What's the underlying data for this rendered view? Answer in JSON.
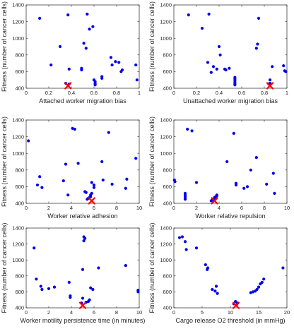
{
  "colors": {
    "points": "#0000ee",
    "best_marker": "#ff0000",
    "axes": "#262626"
  },
  "chart_data": [
    {
      "type": "scatter",
      "xlabel": "Attached worker migration bias",
      "ylabel": "Fitness (number of cancer cells)",
      "xlim": [
        0,
        1
      ],
      "ylim": [
        400,
        1400
      ],
      "xticks": [
        0,
        0.2,
        0.4,
        0.6,
        0.8,
        1
      ],
      "xtick_labels": [
        "0",
        "0.2",
        "0.4",
        "0.6",
        "0.8",
        "1"
      ],
      "yticks": [
        400,
        600,
        800,
        1000,
        1200,
        1400
      ],
      "ytick_labels": [
        "400",
        "600",
        "800",
        "1000",
        "1200",
        "1400"
      ],
      "x": [
        0.12,
        0.22,
        0.3,
        0.35,
        0.37,
        0.38,
        0.38,
        0.49,
        0.49,
        0.51,
        0.53,
        0.54,
        0.56,
        0.59,
        0.6,
        0.61,
        0.61,
        0.61,
        0.61,
        0.67,
        0.67,
        0.75,
        0.76,
        0.79,
        0.82,
        0.84,
        0.85,
        0.97,
        0.98
      ],
      "y": [
        1240,
        680,
        900,
        460,
        1280,
        450,
        630,
        620,
        640,
        940,
        880,
        1290,
        1110,
        1140,
        500,
        480,
        460,
        450,
        440,
        520,
        540,
        770,
        680,
        720,
        710,
        600,
        620,
        680,
        500
      ],
      "best": {
        "x": 0.37,
        "y": 430
      }
    },
    {
      "type": "scatter",
      "xlabel": "Unattached worker migration bias",
      "ylabel": "Fitness (number of cancer cells)",
      "xlim": [
        0,
        1
      ],
      "ylim": [
        400,
        1400
      ],
      "xticks": [
        0,
        0.2,
        0.4,
        0.6,
        0.8,
        1
      ],
      "xtick_labels": [
        "0",
        "0.2",
        "0.4",
        "0.6",
        "0.8",
        "1"
      ],
      "yticks": [
        400,
        600,
        800,
        1000,
        1200,
        1400
      ],
      "ytick_labels": [
        "400",
        "600",
        "800",
        "1000",
        "1200",
        "1400"
      ],
      "x": [
        0.13,
        0.25,
        0.3,
        0.31,
        0.33,
        0.35,
        0.38,
        0.4,
        0.41,
        0.45,
        0.46,
        0.49,
        0.54,
        0.54,
        0.54,
        0.54,
        0.54,
        0.54,
        0.73,
        0.74,
        0.75,
        0.84,
        0.85,
        0.85,
        0.87,
        0.97,
        0.98,
        0.99
      ],
      "y": [
        1280,
        1120,
        710,
        1290,
        590,
        660,
        630,
        900,
        800,
        630,
        620,
        640,
        530,
        510,
        490,
        470,
        450,
        440,
        880,
        930,
        1240,
        450,
        460,
        500,
        660,
        670,
        610,
        600
      ],
      "best": {
        "x": 0.85,
        "y": 430
      }
    },
    {
      "type": "scatter",
      "xlabel": "Worker relative adhesion",
      "ylabel": "Fitness (number of cancer cells)",
      "xlim": [
        0,
        10
      ],
      "ylim": [
        400,
        1400
      ],
      "xticks": [
        0,
        2,
        4,
        6,
        8,
        10
      ],
      "xtick_labels": [
        "0",
        "2",
        "4",
        "6",
        "8",
        "10"
      ],
      "yticks": [
        400,
        600,
        800,
        1000,
        1200,
        1400
      ],
      "ytick_labels": [
        "400",
        "600",
        "800",
        "1000",
        "1200",
        "1400"
      ],
      "x": [
        0.2,
        1.0,
        1.2,
        1.4,
        3.3,
        3.5,
        3.7,
        4.1,
        4.3,
        4.6,
        5.2,
        5.3,
        5.4,
        5.5,
        5.6,
        5.7,
        5.7,
        5.8,
        5.8,
        6.0,
        6.0,
        6.7,
        6.8,
        7.3,
        7.6,
        8.8,
        8.9,
        9.7
      ],
      "y": [
        1150,
        620,
        720,
        590,
        670,
        870,
        500,
        1300,
        1290,
        880,
        540,
        530,
        450,
        460,
        470,
        480,
        500,
        520,
        650,
        590,
        620,
        900,
        680,
        1250,
        630,
        580,
        690,
        940
      ],
      "best": {
        "x": 5.8,
        "y": 430
      }
    },
    {
      "type": "scatter",
      "xlabel": "Worker relative repulsion",
      "ylabel": "Fitness (number of cancer cells)",
      "xlim": [
        0,
        10
      ],
      "ylim": [
        400,
        1400
      ],
      "xticks": [
        0,
        2,
        4,
        6,
        8,
        10
      ],
      "xtick_labels": [
        "0",
        "2",
        "4",
        "6",
        "8",
        "10"
      ],
      "yticks": [
        400,
        600,
        800,
        1000,
        1200,
        1400
      ],
      "ytick_labels": [
        "400",
        "600",
        "800",
        "1000",
        "1200",
        "1400"
      ],
      "x": [
        0.05,
        0.1,
        1.0,
        1.0,
        1.0,
        1.0,
        1.0,
        1.2,
        1.6,
        2.0,
        3.3,
        3.4,
        3.5,
        3.6,
        3.6,
        3.7,
        3.8,
        3.8,
        4.7,
        5.3,
        5.5,
        5.5,
        6.2,
        6.5,
        6.8,
        7.3,
        8.2,
        8.8,
        8.9
      ],
      "y": [
        680,
        660,
        520,
        500,
        480,
        460,
        450,
        1290,
        1270,
        650,
        430,
        440,
        450,
        460,
        470,
        480,
        490,
        500,
        900,
        1240,
        620,
        640,
        580,
        600,
        800,
        950,
        630,
        760,
        520
      ],
      "best": {
        "x": 3.6,
        "y": 430
      }
    },
    {
      "type": "scatter",
      "xlabel": "Worker motility persistence time (in minutes)",
      "ylabel": "Fitness (number of cancer cells)",
      "xlim": [
        0,
        10
      ],
      "ylim": [
        400,
        1400
      ],
      "xticks": [
        0,
        2,
        4,
        6,
        8,
        10
      ],
      "xtick_labels": [
        "0",
        "2",
        "4",
        "6",
        "8",
        "10"
      ],
      "yticks": [
        400,
        600,
        800,
        1000,
        1200,
        1400
      ],
      "ytick_labels": [
        "400",
        "600",
        "800",
        "1000",
        "1200",
        "1400"
      ],
      "x": [
        0.7,
        0.9,
        1.3,
        1.4,
        2.0,
        2.5,
        3.8,
        3.9,
        3.9,
        4.9,
        5.0,
        5.0,
        5.1,
        5.1,
        5.2,
        5.3,
        5.3,
        5.5,
        5.6,
        5.7,
        5.9,
        6.4,
        8.8,
        9.9,
        9.9
      ],
      "y": [
        1150,
        760,
        670,
        630,
        640,
        660,
        720,
        550,
        530,
        460,
        520,
        880,
        1240,
        1290,
        1270,
        470,
        470,
        480,
        500,
        650,
        630,
        900,
        930,
        600,
        620
      ],
      "best": {
        "x": 5.0,
        "y": 430
      }
    },
    {
      "type": "scatter",
      "xlabel": "Cargo release O2 threshold (in mmHg)",
      "ylabel": "Fitness (number of cancer cells)",
      "xlim": [
        0,
        20
      ],
      "ylim": [
        400,
        1400
      ],
      "xticks": [
        0,
        5,
        10,
        15,
        20
      ],
      "xtick_labels": [
        "0",
        "5",
        "10",
        "15",
        "20"
      ],
      "yticks": [
        400,
        600,
        800,
        1000,
        1200,
        1400
      ],
      "ytick_labels": [
        "400",
        "600",
        "800",
        "1000",
        "1200",
        "1400"
      ],
      "x": [
        1.0,
        1.5,
        2.0,
        2.2,
        4.0,
        5.6,
        5.9,
        6.0,
        6.8,
        7.3,
        7.5,
        7.7,
        10.6,
        10.9,
        11.1,
        11.3,
        13.6,
        14.0,
        14.4,
        14.7,
        15.0,
        15.3,
        15.6,
        15.9,
        19.3
      ],
      "y": [
        1280,
        1290,
        1230,
        1130,
        1150,
        940,
        880,
        900,
        630,
        610,
        670,
        580,
        450,
        480,
        440,
        460,
        590,
        600,
        610,
        630,
        660,
        700,
        720,
        760,
        900
      ],
      "best": {
        "x": 11.0,
        "y": 430
      }
    }
  ]
}
